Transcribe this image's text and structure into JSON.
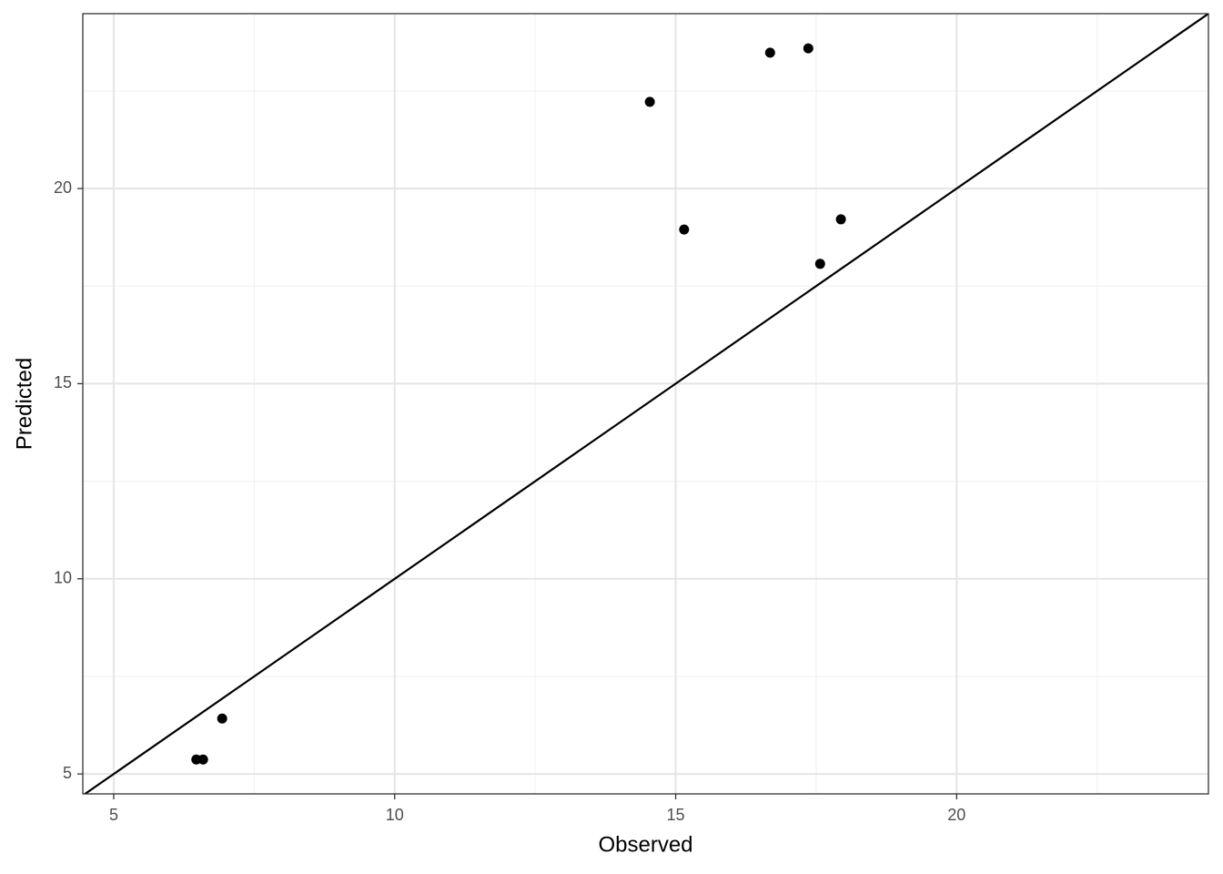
{
  "chart_data": {
    "type": "scatter",
    "x_label": "Observed",
    "y_label": "Predicted",
    "x": [
      6.93,
      6.47,
      6.59,
      14.54,
      15.15,
      16.68,
      17.36,
      17.57,
      17.94
    ],
    "y": [
      6.42,
      5.37,
      5.37,
      22.22,
      18.95,
      23.48,
      23.59,
      18.07,
      19.21
    ],
    "color": "#000000",
    "xlim": [
      4.45,
      24.48
    ],
    "ylim": [
      4.49,
      24.48
    ],
    "xticks": [
      5,
      10,
      15,
      20
    ],
    "yticks": [
      5,
      10,
      15,
      20
    ],
    "xminor": [
      7.5,
      12.5,
      17.5,
      22.5
    ],
    "yminor": [
      7.5,
      12.5,
      17.5,
      22.5
    ],
    "grid": true,
    "identity_line": true
  }
}
